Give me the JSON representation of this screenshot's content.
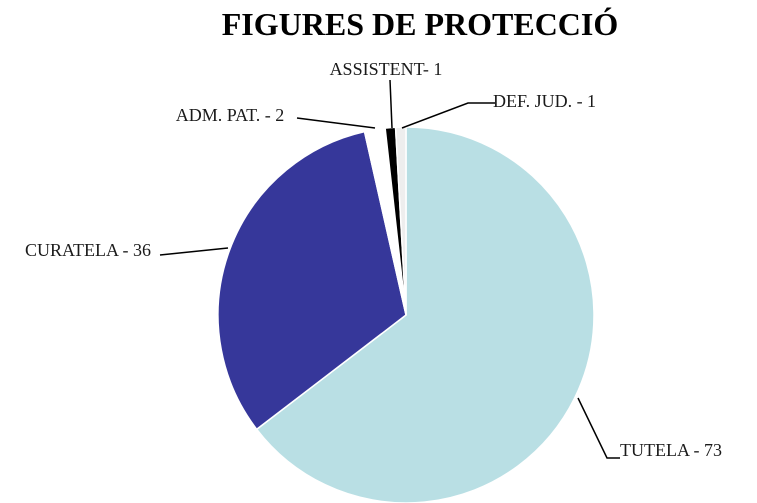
{
  "chart_data": {
    "type": "pie",
    "title": "FIGURES DE PROTECCIÓ",
    "categories": [
      "TUTELA - 73",
      "CURATELA - 36",
      "ADM. PAT. - 2",
      "ASSISTENT- 1",
      "DEF. JUD. - 1"
    ],
    "values": [
      73,
      36,
      2,
      1,
      1
    ],
    "colors": [
      "#b9dfe4",
      "#36379a",
      "#ffffff",
      "#000000",
      "#eeeeee"
    ]
  }
}
